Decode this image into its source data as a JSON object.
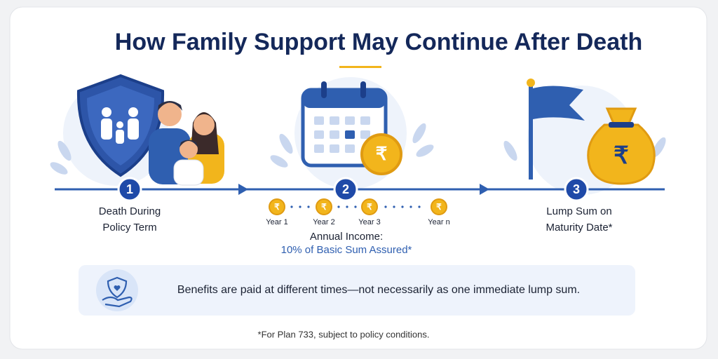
{
  "title": "How Family Support May Continue After Death",
  "steps": [
    {
      "number": "1",
      "label": [
        "Death During",
        "Policy Term"
      ]
    },
    {
      "number": "2",
      "years": [
        "Year 1",
        "Year 2",
        "Year 3",
        "Year n"
      ],
      "currency_symbol": "₹",
      "label": [
        "Annual Income:",
        "10% of Basic Sum Assured*"
      ]
    },
    {
      "number": "3",
      "label": [
        "Lump Sum on",
        "Maturity Date*"
      ]
    }
  ],
  "banner": "Benefits are paid at different times—not necessarily as one immediate lump sum.",
  "footnote": "*For Plan 733, subject to policy conditions."
}
